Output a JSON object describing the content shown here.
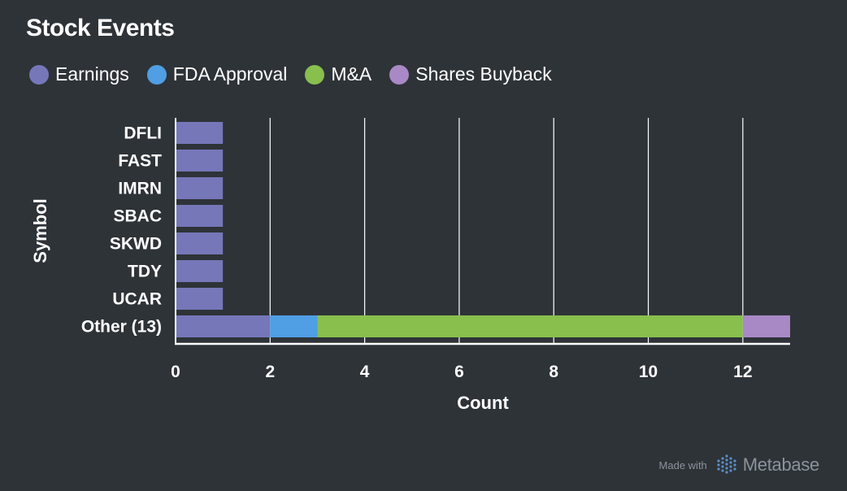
{
  "chart_data": {
    "type": "bar",
    "orientation": "horizontal",
    "stacked": true,
    "title": "Stock Events",
    "xlabel": "Count",
    "ylabel": "Symbol",
    "categories": [
      "DFLI",
      "FAST",
      "IMRN",
      "SBAC",
      "SKWD",
      "TDY",
      "UCAR",
      "Other (13)"
    ],
    "series": [
      {
        "name": "Earnings",
        "color": "#7677b9",
        "values": [
          1,
          1,
          1,
          1,
          1,
          1,
          1,
          2
        ]
      },
      {
        "name": "FDA Approval",
        "color": "#509ee3",
        "values": [
          0,
          0,
          0,
          0,
          0,
          0,
          0,
          1
        ]
      },
      {
        "name": "M&A",
        "color": "#88bf4d",
        "values": [
          0,
          0,
          0,
          0,
          0,
          0,
          0,
          9
        ]
      },
      {
        "name": "Shares Buyback",
        "color": "#a989c5",
        "values": [
          0,
          0,
          0,
          0,
          0,
          0,
          0,
          1
        ]
      }
    ],
    "xlim": [
      0,
      13
    ],
    "xticks": [
      0,
      2,
      4,
      6,
      8,
      10,
      12
    ],
    "grid": true,
    "legend_position": "top-left"
  },
  "footer": {
    "made_with": "Made with",
    "brand": "Metabase"
  }
}
